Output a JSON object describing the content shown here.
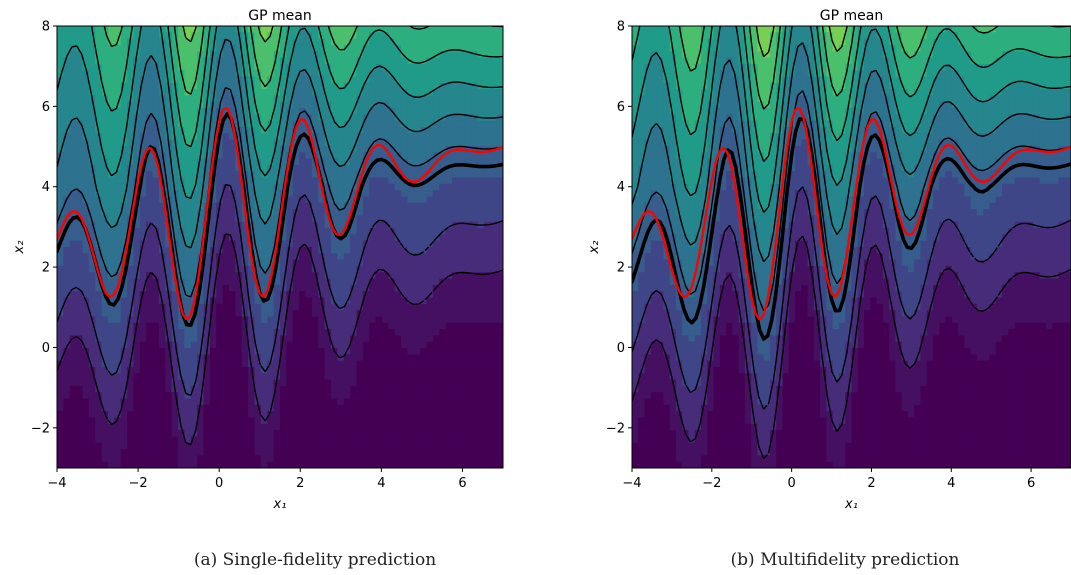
{
  "chart_data": [
    {
      "type": "contour",
      "panel": "a",
      "title": "GP mean",
      "xlabel": "x₁",
      "ylabel": "x₂",
      "xlim": [
        -4,
        7
      ],
      "ylim": [
        -3,
        8
      ],
      "xticks": [
        -4,
        -2,
        0,
        2,
        4,
        6
      ],
      "yticks": [
        -2,
        0,
        2,
        4,
        6,
        8
      ],
      "tick_labels_x": [
        "−4",
        "−2",
        "0",
        "2",
        "4",
        "6"
      ],
      "tick_labels_y": [
        "−2",
        "0",
        "2",
        "4",
        "6",
        "8"
      ],
      "colormap": "viridis",
      "contour_levels": 12,
      "negative_contours": "dashed",
      "zero_contour": {
        "color": "#000000",
        "style": "bold solid"
      },
      "reference_contour": {
        "color": "#ff0000",
        "style": "dash-dot"
      },
      "caption": "(a) Single-fidelity prediction"
    },
    {
      "type": "contour",
      "panel": "b",
      "title": "GP mean",
      "xlabel": "x₁",
      "ylabel": "x₂",
      "xlim": [
        -4,
        7
      ],
      "ylim": [
        -3,
        8
      ],
      "xticks": [
        -4,
        -2,
        0,
        2,
        4,
        6
      ],
      "yticks": [
        -2,
        0,
        2,
        4,
        6,
        8
      ],
      "tick_labels_x": [
        "−4",
        "−2",
        "0",
        "2",
        "4",
        "6"
      ],
      "tick_labels_y": [
        "−2",
        "0",
        "2",
        "4",
        "6",
        "8"
      ],
      "colormap": "viridis",
      "contour_levels": 12,
      "negative_contours": "dashed",
      "zero_contour": {
        "color": "#000000",
        "style": "bold solid"
      },
      "reference_contour": {
        "color": "#ff0000",
        "style": "dash-dot"
      },
      "caption": "(b) Multifidelity prediction"
    }
  ]
}
